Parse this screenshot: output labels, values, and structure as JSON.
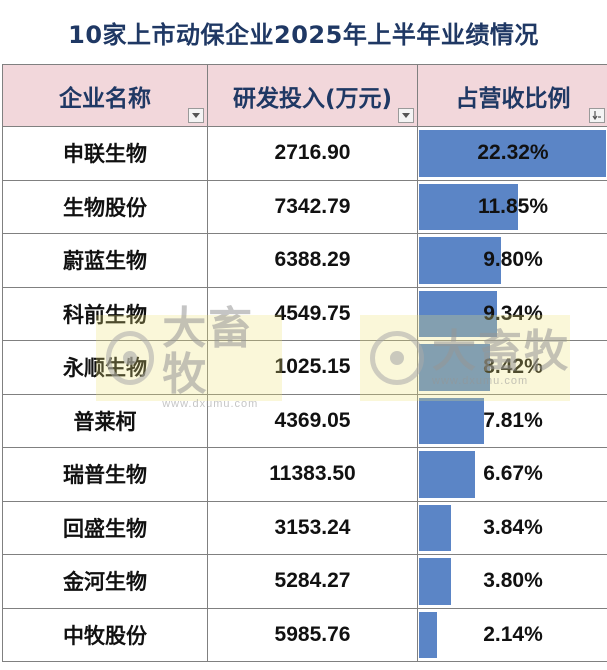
{
  "title": "10家上市动保企业2025年上半年业绩情况",
  "headers": [
    "企业名称",
    "研发投入(万元)",
    "占营收比例"
  ],
  "rows": [
    {
      "name": "申联生物",
      "rd": "2716.90",
      "pct": "22.32%"
    },
    {
      "name": "生物股份",
      "rd": "7342.79",
      "pct": "11.85%"
    },
    {
      "name": "蔚蓝生物",
      "rd": "6388.29",
      "pct": "9.80%"
    },
    {
      "name": "科前生物",
      "rd": "4549.75",
      "pct": "9.34%"
    },
    {
      "name": "永顺生物",
      "rd": "1025.15",
      "pct": "8.42%"
    },
    {
      "name": "普莱柯",
      "rd": "4369.05",
      "pct": "7.81%"
    },
    {
      "name": "瑞普生物",
      "rd": "11383.50",
      "pct": "6.67%"
    },
    {
      "name": "回盛生物",
      "rd": "3153.24",
      "pct": "3.84%"
    },
    {
      "name": "金河生物",
      "rd": "5284.27",
      "pct": "3.80%"
    },
    {
      "name": "中牧股份",
      "rd": "5985.76",
      "pct": "2.14%"
    }
  ],
  "watermark": {
    "brand": "大畜牧",
    "url": "www.dxumu.com"
  },
  "colors": {
    "bar": "#5b85c6",
    "header_bg": "#f2d7db",
    "title": "#1f3864"
  },
  "chart_data": {
    "type": "table",
    "title": "10家上市动保企业2025年上半年业绩情况",
    "columns": [
      "企业名称",
      "研发投入(万元)",
      "占营收比例"
    ],
    "categories": [
      "申联生物",
      "生物股份",
      "蔚蓝生物",
      "科前生物",
      "永顺生物",
      "普莱柯",
      "瑞普生物",
      "回盛生物",
      "金河生物",
      "中牧股份"
    ],
    "series": [
      {
        "name": "研发投入(万元)",
        "values": [
          2716.9,
          7342.79,
          6388.29,
          4549.75,
          1025.15,
          4369.05,
          11383.5,
          3153.24,
          5284.27,
          5985.76
        ]
      },
      {
        "name": "占营收比例",
        "values": [
          22.32,
          11.85,
          9.8,
          9.34,
          8.42,
          7.81,
          6.67,
          3.84,
          3.8,
          2.14
        ]
      }
    ],
    "bar_column": "占营收比例",
    "bar_max": 22.32
  }
}
